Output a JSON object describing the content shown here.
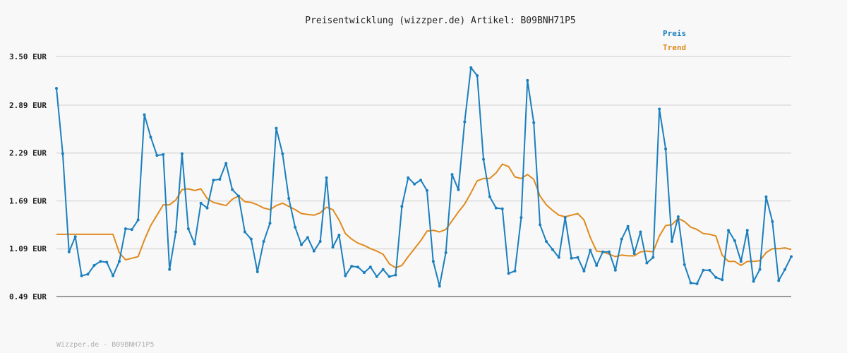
{
  "colors": {
    "preis": "#1b7fbd",
    "trend": "#e08a1e",
    "grid": "#e2e2e2",
    "background": "#f8f8f8"
  },
  "chart_data": {
    "type": "line",
    "title": "Preisentwicklung (wizzper.de) Artikel: B09BNH71P5",
    "xlabel": "",
    "ylabel": "",
    "ylim": [
      0.49,
      3.5
    ],
    "yticks": [
      "0.49 EUR",
      "1.09 EUR",
      "1.69 EUR",
      "2.29 EUR",
      "2.89 EUR",
      "3.50 EUR"
    ],
    "ytick_values": [
      0.49,
      1.09,
      1.69,
      2.29,
      2.89,
      3.5
    ],
    "grid": true,
    "legend_position": "top-right",
    "series": [
      {
        "name": "Preis",
        "color": "#1b7fbd",
        "markers": true,
        "values": [
          3.1,
          2.28,
          1.05,
          1.24,
          0.75,
          0.77,
          0.88,
          0.93,
          0.92,
          0.75,
          0.93,
          1.34,
          1.33,
          1.45,
          2.77,
          2.49,
          2.26,
          2.27,
          0.83,
          1.3,
          2.28,
          1.34,
          1.15,
          1.66,
          1.6,
          1.95,
          1.96,
          2.16,
          1.83,
          1.75,
          1.3,
          1.21,
          0.8,
          1.18,
          1.41,
          2.6,
          2.28,
          1.72,
          1.36,
          1.14,
          1.23,
          1.06,
          1.18,
          1.98,
          1.11,
          1.26,
          0.75,
          0.87,
          0.86,
          0.79,
          0.86,
          0.74,
          0.83,
          0.74,
          0.76,
          1.62,
          1.98,
          1.9,
          1.95,
          1.82,
          0.93,
          0.62,
          1.04,
          2.02,
          1.83,
          2.68,
          3.36,
          3.26,
          2.21,
          1.74,
          1.6,
          1.59,
          0.78,
          0.81,
          1.48,
          3.2,
          2.67,
          1.39,
          1.18,
          1.08,
          0.98,
          1.48,
          0.97,
          0.98,
          0.81,
          1.07,
          0.88,
          1.05,
          1.05,
          0.82,
          1.21,
          1.37,
          1.03,
          1.3,
          0.91,
          0.98,
          2.84,
          2.34,
          1.18,
          1.49,
          0.89,
          0.66,
          0.65,
          0.82,
          0.82,
          0.73,
          0.7,
          1.32,
          1.19,
          0.93,
          1.32,
          0.68,
          0.83,
          1.74,
          1.43,
          0.69,
          0.83,
          0.99
        ]
      },
      {
        "name": "Trend",
        "color": "#e08a1e",
        "markers": false,
        "values": [
          1.27,
          1.27,
          1.27,
          1.27,
          1.27,
          1.27,
          1.27,
          1.27,
          1.27,
          1.27,
          1.04,
          0.95,
          0.97,
          0.99,
          1.2,
          1.38,
          1.51,
          1.64,
          1.64,
          1.7,
          1.83,
          1.84,
          1.82,
          1.84,
          1.72,
          1.67,
          1.65,
          1.63,
          1.71,
          1.75,
          1.68,
          1.67,
          1.64,
          1.6,
          1.58,
          1.63,
          1.66,
          1.62,
          1.58,
          1.53,
          1.52,
          1.51,
          1.54,
          1.61,
          1.58,
          1.45,
          1.28,
          1.21,
          1.16,
          1.13,
          1.09,
          1.06,
          1.02,
          0.9,
          0.85,
          0.88,
          0.99,
          1.09,
          1.19,
          1.31,
          1.32,
          1.3,
          1.33,
          1.44,
          1.55,
          1.65,
          1.79,
          1.94,
          1.97,
          1.97,
          2.04,
          2.15,
          2.12,
          1.99,
          1.97,
          2.02,
          1.96,
          1.75,
          1.64,
          1.57,
          1.51,
          1.49,
          1.51,
          1.53,
          1.45,
          1.23,
          1.06,
          1.05,
          1.02,
          0.99,
          1.01,
          1.0,
          1.0,
          1.05,
          1.06,
          1.05,
          1.25,
          1.38,
          1.39,
          1.47,
          1.43,
          1.36,
          1.33,
          1.28,
          1.27,
          1.25,
          1.01,
          0.93,
          0.93,
          0.88,
          0.93,
          0.93,
          0.94,
          1.04,
          1.09,
          1.09,
          1.1,
          1.08
        ]
      }
    ]
  },
  "footer": "Wizzper.de - B09BNH71P5"
}
